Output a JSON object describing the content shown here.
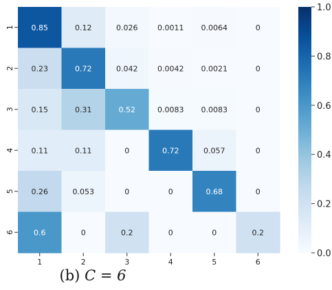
{
  "chart_data": {
    "type": "heatmap",
    "title": "",
    "xlabel": "",
    "ylabel": "",
    "x_categories": [
      "1",
      "2",
      "3",
      "4",
      "5",
      "6"
    ],
    "y_categories": [
      "1",
      "2",
      "3",
      "4",
      "5",
      "6"
    ],
    "values": [
      [
        0.85,
        0.12,
        0.026,
        0.0011,
        0.0064,
        0
      ],
      [
        0.23,
        0.72,
        0.042,
        0.0042,
        0.0021,
        0
      ],
      [
        0.15,
        0.31,
        0.52,
        0.0083,
        0.0083,
        0
      ],
      [
        0.11,
        0.11,
        0,
        0.72,
        0.057,
        0
      ],
      [
        0.26,
        0.053,
        0,
        0,
        0.68,
        0
      ],
      [
        0.6,
        0,
        0.2,
        0,
        0,
        0.2
      ]
    ],
    "value_labels": [
      [
        "0.85",
        "0.12",
        "0.026",
        "0.0011",
        "0.0064",
        "0"
      ],
      [
        "0.23",
        "0.72",
        "0.042",
        "0.0042",
        "0.0021",
        "0"
      ],
      [
        "0.15",
        "0.31",
        "0.52",
        "0.0083",
        "0.0083",
        "0"
      ],
      [
        "0.11",
        "0.11",
        "0",
        "0.72",
        "0.057",
        "0"
      ],
      [
        "0.26",
        "0.053",
        "0",
        "0",
        "0.68",
        "0"
      ],
      [
        "0.6",
        "0",
        "0.2",
        "0",
        "0",
        "0.2"
      ]
    ],
    "colorbar": {
      "range": [
        0,
        1
      ],
      "ticks": [
        0.0,
        0.2,
        0.4,
        0.6,
        0.8,
        1.0
      ],
      "tick_labels": [
        "0.0",
        "0.2",
        "0.4",
        "0.6",
        "0.8",
        "1.0"
      ],
      "colormap": "Blues"
    },
    "grid": false
  },
  "caption": {
    "label": "(b)",
    "math": "C = 6"
  }
}
